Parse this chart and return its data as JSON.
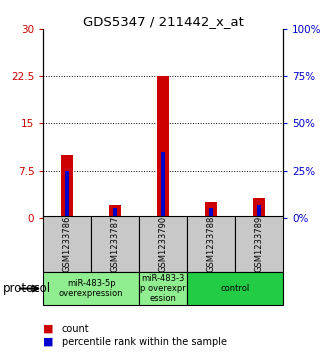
{
  "title": "GDS5347 / 211442_x_at",
  "samples": [
    "GSM1233786",
    "GSM1233787",
    "GSM1233790",
    "GSM1233788",
    "GSM1233789"
  ],
  "red_values": [
    10.0,
    2.0,
    22.5,
    2.5,
    3.2
  ],
  "blue_pct": [
    25.0,
    5.0,
    35.0,
    5.0,
    7.0
  ],
  "ylim_left": [
    0,
    30
  ],
  "ylim_right": [
    0,
    100
  ],
  "yticks_left": [
    0,
    7.5,
    15,
    22.5,
    30
  ],
  "yticks_right": [
    0,
    25,
    50,
    75,
    100
  ],
  "ytick_labels_left": [
    "0",
    "7.5",
    "15",
    "22.5",
    "30"
  ],
  "ytick_labels_right": [
    "0%",
    "25%",
    "50%",
    "75%",
    "100%"
  ],
  "red_bar_width": 0.25,
  "blue_bar_width": 0.08,
  "bg_color": "#ffffff",
  "plot_bg": "#ffffff",
  "label_color_left": "#cc0000",
  "label_color_right": "#0000cc",
  "red_bar_color": "#cc0000",
  "blue_bar_color": "#0000cc",
  "sample_area_color": "#c8c8c8",
  "group_positions": [
    [
      0,
      1
    ],
    [
      2
    ],
    [
      3,
      4
    ]
  ],
  "group_labels": [
    "miR-483-5p\noverexpression",
    "miR-483-3\np overexpr\nession",
    "control"
  ],
  "group_colors": [
    "#90ee90",
    "#90ee90",
    "#22cc44"
  ],
  "protocol_label": "protocol"
}
